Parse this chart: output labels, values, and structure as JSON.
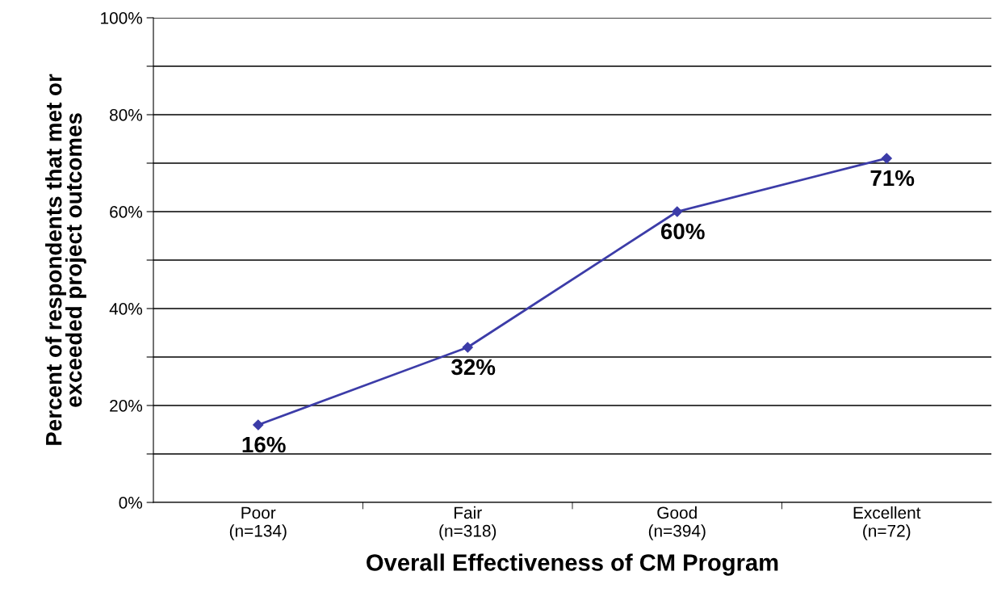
{
  "chart_data": {
    "type": "line",
    "xlabel": "Overall Effectiveness of CM Program",
    "ylabel": "Percent of respondents that met or\nexceeded project outcomes",
    "categories": [
      "Poor\n(n=134)",
      "Fair\n(n=318)",
      "Good\n(n=394)",
      "Excellent\n(n=72)"
    ],
    "series": [
      {
        "color": "#3c3ca8",
        "values": [
          16,
          32,
          60,
          71
        ]
      }
    ],
    "ylim": [
      0,
      100
    ],
    "yticks": [
      {
        "value": 0,
        "label": "0%"
      },
      {
        "value": 10,
        "label": null
      },
      {
        "value": 20,
        "label": "20%"
      },
      {
        "value": 30,
        "label": null
      },
      {
        "value": 40,
        "label": "40%"
      },
      {
        "value": 50,
        "label": null
      },
      {
        "value": 60,
        "label": "60%"
      },
      {
        "value": 70,
        "label": null
      },
      {
        "value": 80,
        "label": "80%"
      },
      {
        "value": 90,
        "label": null
      },
      {
        "value": 100,
        "label": "100%"
      }
    ],
    "value_labels": [
      "16%",
      "32%",
      "60%",
      "71%"
    ],
    "grid": "y",
    "marker": "diamond",
    "line_style": "solid",
    "legend": false
  }
}
